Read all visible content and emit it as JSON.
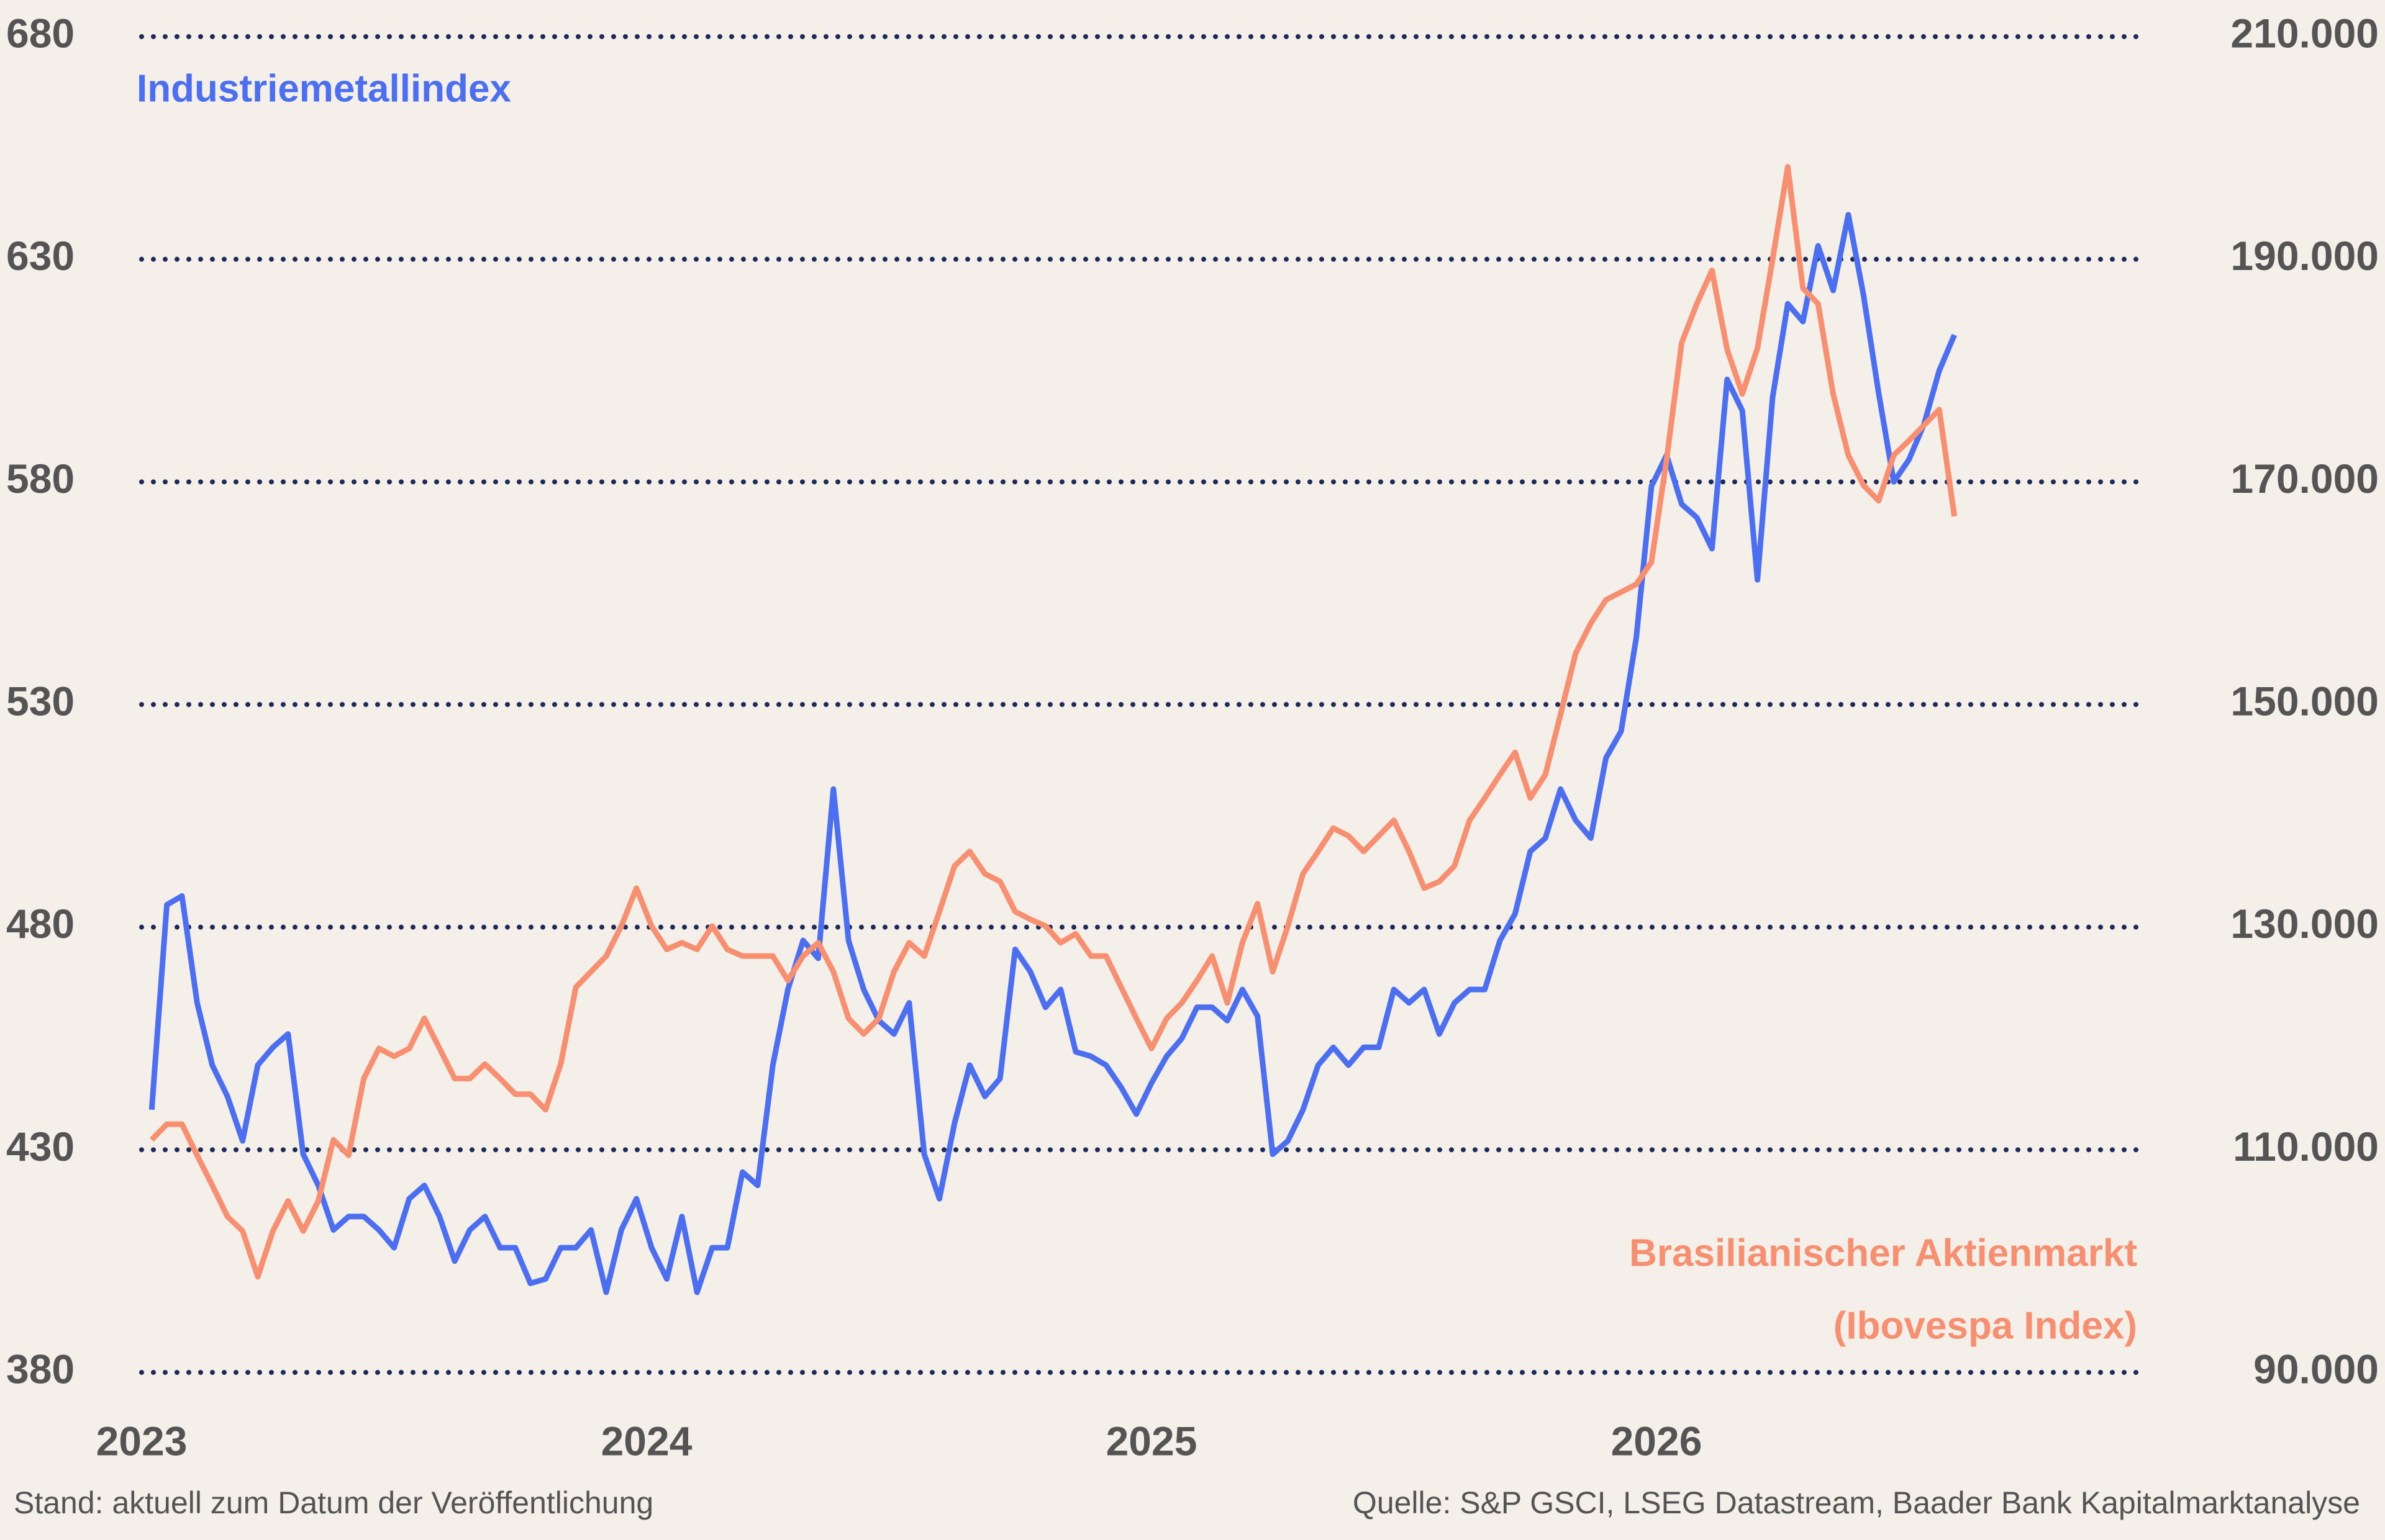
{
  "chart_data": {
    "type": "line",
    "x": [
      2023.02,
      2023.05,
      2023.08,
      2023.11,
      2023.14,
      2023.17,
      2023.2,
      2023.23,
      2023.26,
      2023.29,
      2023.32,
      2023.35,
      2023.38,
      2023.41,
      2023.44,
      2023.47,
      2023.5,
      2023.53,
      2023.56,
      2023.59,
      2023.62,
      2023.65,
      2023.68,
      2023.71,
      2023.74,
      2023.77,
      2023.8,
      2023.83,
      2023.86,
      2023.89,
      2023.92,
      2023.95,
      2023.98,
      2024.01,
      2024.04,
      2024.07,
      2024.1,
      2024.13,
      2024.16,
      2024.19,
      2024.22,
      2024.25,
      2024.28,
      2024.31,
      2024.34,
      2024.37,
      2024.4,
      2024.43,
      2024.46,
      2024.49,
      2024.52,
      2024.55,
      2024.58,
      2024.61,
      2024.64,
      2024.67,
      2024.7,
      2024.73,
      2024.76,
      2024.79,
      2024.82,
      2024.85,
      2024.88,
      2024.91,
      2024.94,
      2024.97,
      2025.0,
      2025.03,
      2025.06,
      2025.09,
      2025.12,
      2025.15,
      2025.18,
      2025.21,
      2025.24,
      2025.27,
      2025.3,
      2025.33,
      2025.36,
      2025.39,
      2025.42,
      2025.45,
      2025.48,
      2025.51,
      2025.54,
      2025.57,
      2025.6,
      2025.63,
      2025.66,
      2025.69,
      2025.72,
      2025.75,
      2025.78,
      2025.81,
      2025.84,
      2025.87,
      2025.9,
      2025.93,
      2025.96,
      2025.99,
      2026.02,
      2026.05,
      2026.08,
      2026.11,
      2026.14,
      2026.17,
      2026.2,
      2026.23,
      2026.26,
      2026.29,
      2026.32,
      2026.35,
      2026.38,
      2026.41,
      2026.44,
      2026.47,
      2026.5,
      2026.53,
      2026.56,
      2026.59
    ],
    "series": [
      {
        "name": "Industriemetallindex",
        "color": "#4b6ff0",
        "axis": "y",
        "values": [
          439,
          485,
          487,
          463,
          449,
          442,
          432,
          449,
          453,
          456,
          429,
          422,
          412,
          415,
          415,
          412,
          408,
          419,
          422,
          415,
          405,
          412,
          415,
          408,
          408,
          400,
          401,
          408,
          408,
          412,
          398,
          412,
          419,
          408,
          401,
          415,
          398,
          408,
          408,
          425,
          422,
          449,
          466,
          477,
          473,
          511,
          477,
          466,
          459,
          456,
          463,
          429,
          419,
          436,
          449,
          442,
          446,
          475,
          470,
          462,
          466,
          452,
          451,
          449,
          444,
          438,
          445,
          451,
          455,
          462,
          462,
          459,
          466,
          460,
          429,
          432,
          439,
          449,
          453,
          449,
          453,
          453,
          466,
          463,
          466,
          456,
          463,
          466,
          466,
          477,
          483,
          497,
          500,
          511,
          504,
          500,
          518,
          524,
          545,
          579,
          586,
          575,
          572,
          565,
          603,
          596,
          558,
          599,
          620,
          616,
          633,
          623,
          640,
          622,
          600,
          580,
          585,
          593,
          605,
          613
        ]
      },
      {
        "name": "Brasilianischer Aktienmarkt",
        "subname": "(Ibovespa Index)",
        "color": "#f78f70",
        "axis": "y2",
        "values": [
          110900,
          112300,
          112300,
          109500,
          106800,
          104000,
          102700,
          98600,
          102700,
          105400,
          102700,
          105400,
          110900,
          109500,
          116400,
          119100,
          118400,
          119100,
          121800,
          119100,
          116400,
          116400,
          117700,
          116400,
          115000,
          115000,
          113600,
          117700,
          124600,
          126000,
          127400,
          130100,
          133500,
          130100,
          128000,
          128600,
          128000,
          130100,
          128000,
          127400,
          127400,
          127400,
          125200,
          127400,
          128600,
          126000,
          121800,
          120400,
          121800,
          126000,
          128600,
          127400,
          131400,
          135500,
          136800,
          134800,
          134100,
          131400,
          130700,
          130100,
          128600,
          129400,
          127400,
          127400,
          124600,
          121800,
          119100,
          121800,
          123200,
          125200,
          127400,
          123200,
          128600,
          132100,
          126000,
          130100,
          134800,
          136800,
          138900,
          138200,
          136800,
          138200,
          139600,
          136800,
          133500,
          134100,
          135500,
          139600,
          141600,
          143700,
          145700,
          141600,
          143700,
          149100,
          154600,
          157300,
          159400,
          160100,
          160800,
          162800,
          172000,
          182500,
          186000,
          189000,
          181900,
          177900,
          182000,
          190000,
          198300,
          187400,
          186000,
          177900,
          172400,
          169700,
          168300,
          172400,
          173700,
          175100,
          176500,
          166900
        ]
      }
    ],
    "xlim": [
      2023,
      2027
    ],
    "xticks": [
      2023,
      2024,
      2025,
      2026
    ],
    "ylim": [
      380,
      680
    ],
    "yticks": [
      380,
      430,
      480,
      530,
      580,
      630,
      680
    ],
    "y2lim": [
      90000,
      210000
    ],
    "y2ticks": [
      {
        "value": 90000,
        "label": "90.000"
      },
      {
        "value": 110000,
        "label": "110.000"
      },
      {
        "value": 130000,
        "label": "130.000"
      },
      {
        "value": 150000,
        "label": "150.000"
      },
      {
        "value": 170000,
        "label": "170.000"
      },
      {
        "value": 190000,
        "label": "190.000"
      },
      {
        "value": 210000,
        "label": "210.000"
      }
    ],
    "grid": true,
    "note": "Stand: aktuell zum Datum der Veröffentlichung",
    "source": "Quelle: S&P GSCI, LSEG Datastream, Baader Bank Kapitalmarktanalyse"
  }
}
